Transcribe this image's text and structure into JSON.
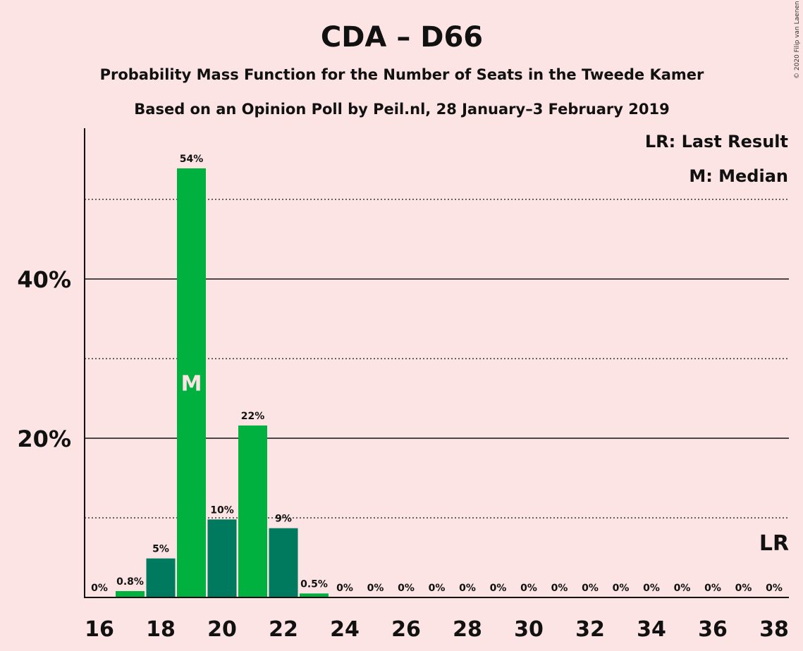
{
  "chart_data": {
    "type": "bar",
    "title": "CDA – D66",
    "subtitle": "Probability Mass Function for the Number of Seats in the Tweede Kamer",
    "subtitle2": "Based on an Opinion Poll by Peil.nl, 28 January–3 February 2019",
    "copyright": "© 2020 Filip van Laenen",
    "legend": [
      "LR: Last Result",
      "M: Median"
    ],
    "legend_position": "top-right",
    "ylim": [
      0,
      58
    ],
    "yticks": [
      {
        "value": 20,
        "label": "20%"
      },
      {
        "value": 40,
        "label": "40%"
      }
    ],
    "minor_gridlines": [
      10,
      30,
      50
    ],
    "xticks": [
      "16",
      "18",
      "20",
      "22",
      "24",
      "26",
      "28",
      "30",
      "32",
      "34",
      "36",
      "38"
    ],
    "x": [
      16,
      17,
      18,
      19,
      20,
      21,
      22,
      23,
      24,
      25,
      26,
      27,
      28,
      29,
      30,
      31,
      32,
      33,
      34,
      35,
      36,
      37,
      38
    ],
    "values": [
      0,
      0.8,
      5,
      54,
      10,
      22,
      9,
      0.5,
      0,
      0,
      0,
      0,
      0,
      0,
      0,
      0,
      0,
      0,
      0,
      0,
      0,
      0,
      0
    ],
    "bar_value_estimates": [
      0,
      0.8,
      4.9,
      53.9,
      9.8,
      21.6,
      8.7,
      0.5,
      0,
      0,
      0,
      0,
      0,
      0,
      0,
      0,
      0,
      0,
      0,
      0,
      0,
      0,
      0
    ],
    "labels": [
      "0%",
      "0.8%",
      "5%",
      "54%",
      "10%",
      "22%",
      "9%",
      "0.5%",
      "0%",
      "0%",
      "0%",
      "0%",
      "0%",
      "0%",
      "0%",
      "0%",
      "0%",
      "0%",
      "0%",
      "0%",
      "0%",
      "0%",
      "0%"
    ],
    "median_seat": 19,
    "median_marker": "M",
    "last_result_seat": 38,
    "last_result_marker": "LR",
    "colors": {
      "light": "#00b140",
      "dark": "#007a5e",
      "background": "#fce4e4"
    }
  }
}
